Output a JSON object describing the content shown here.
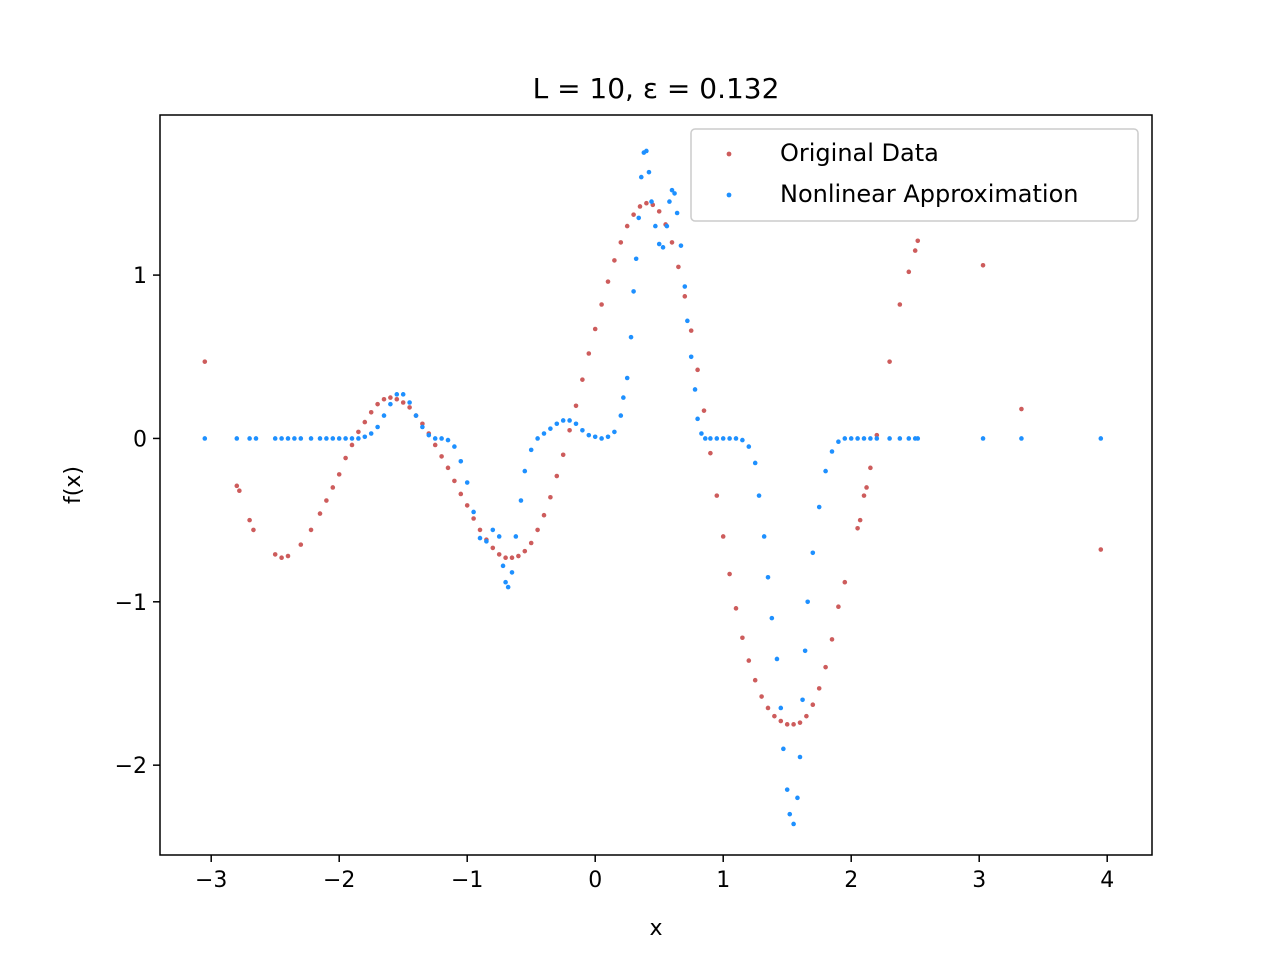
{
  "chart_data": {
    "type": "scatter",
    "title": "L = 10, ε = 0.132",
    "xlabel": "x",
    "ylabel": "f(x)",
    "xlim": [
      -3.4,
      4.35
    ],
    "ylim": [
      -2.55,
      1.98
    ],
    "xticks": [
      -3,
      -2,
      -1,
      0,
      1,
      2,
      3,
      4
    ],
    "xtick_labels": [
      "−3",
      "−2",
      "−1",
      "0",
      "1",
      "2",
      "3",
      "4"
    ],
    "yticks": [
      -2,
      -1,
      0,
      1
    ],
    "ytick_labels": [
      "−2",
      "−1",
      "0",
      "1"
    ],
    "grid": false,
    "legend_position": "top-right",
    "series": [
      {
        "name": "Original Data",
        "color": "#cd5c5c",
        "points": [
          [
            -3.05,
            0.47
          ],
          [
            -2.8,
            -0.29
          ],
          [
            -2.78,
            -0.32
          ],
          [
            -2.7,
            -0.5
          ],
          [
            -2.67,
            -0.56
          ],
          [
            -2.5,
            -0.71
          ],
          [
            -2.45,
            -0.73
          ],
          [
            -2.4,
            -0.72
          ],
          [
            -2.3,
            -0.65
          ],
          [
            -2.22,
            -0.56
          ],
          [
            -2.15,
            -0.46
          ],
          [
            -2.1,
            -0.38
          ],
          [
            -2.05,
            -0.3
          ],
          [
            -2.0,
            -0.22
          ],
          [
            -1.95,
            -0.12
          ],
          [
            -1.9,
            -0.04
          ],
          [
            -1.85,
            0.04
          ],
          [
            -1.8,
            0.1
          ],
          [
            -1.75,
            0.16
          ],
          [
            -1.7,
            0.21
          ],
          [
            -1.65,
            0.24
          ],
          [
            -1.6,
            0.25
          ],
          [
            -1.55,
            0.24
          ],
          [
            -1.5,
            0.22
          ],
          [
            -1.45,
            0.19
          ],
          [
            -1.4,
            0.14
          ],
          [
            -1.35,
            0.09
          ],
          [
            -1.3,
            0.03
          ],
          [
            -1.25,
            -0.04
          ],
          [
            -1.2,
            -0.11
          ],
          [
            -1.15,
            -0.18
          ],
          [
            -1.1,
            -0.26
          ],
          [
            -1.05,
            -0.34
          ],
          [
            -1.0,
            -0.41
          ],
          [
            -0.95,
            -0.49
          ],
          [
            -0.9,
            -0.56
          ],
          [
            -0.85,
            -0.62
          ],
          [
            -0.8,
            -0.67
          ],
          [
            -0.75,
            -0.71
          ],
          [
            -0.7,
            -0.73
          ],
          [
            -0.65,
            -0.73
          ],
          [
            -0.6,
            -0.72
          ],
          [
            -0.55,
            -0.69
          ],
          [
            -0.5,
            -0.64
          ],
          [
            -0.45,
            -0.56
          ],
          [
            -0.4,
            -0.47
          ],
          [
            -0.35,
            -0.36
          ],
          [
            -0.3,
            -0.23
          ],
          [
            -0.25,
            -0.1
          ],
          [
            -0.2,
            0.05
          ],
          [
            -0.15,
            0.2
          ],
          [
            -0.1,
            0.36
          ],
          [
            -0.05,
            0.52
          ],
          [
            0.0,
            0.67
          ],
          [
            0.05,
            0.82
          ],
          [
            0.1,
            0.96
          ],
          [
            0.15,
            1.09
          ],
          [
            0.2,
            1.2
          ],
          [
            0.25,
            1.3
          ],
          [
            0.3,
            1.37
          ],
          [
            0.35,
            1.42
          ],
          [
            0.4,
            1.44
          ],
          [
            0.45,
            1.43
          ],
          [
            0.5,
            1.39
          ],
          [
            0.55,
            1.31
          ],
          [
            0.6,
            1.2
          ],
          [
            0.65,
            1.05
          ],
          [
            0.7,
            0.87
          ],
          [
            0.75,
            0.66
          ],
          [
            0.8,
            0.42
          ],
          [
            0.85,
            0.17
          ],
          [
            0.9,
            -0.09
          ],
          [
            0.95,
            -0.35
          ],
          [
            1.0,
            -0.6
          ],
          [
            1.05,
            -0.83
          ],
          [
            1.1,
            -1.04
          ],
          [
            1.15,
            -1.22
          ],
          [
            1.2,
            -1.36
          ],
          [
            1.25,
            -1.48
          ],
          [
            1.3,
            -1.58
          ],
          [
            1.35,
            -1.65
          ],
          [
            1.4,
            -1.7
          ],
          [
            1.45,
            -1.73
          ],
          [
            1.5,
            -1.75
          ],
          [
            1.55,
            -1.75
          ],
          [
            1.6,
            -1.74
          ],
          [
            1.65,
            -1.7
          ],
          [
            1.7,
            -1.63
          ],
          [
            1.75,
            -1.53
          ],
          [
            1.8,
            -1.4
          ],
          [
            1.85,
            -1.23
          ],
          [
            1.9,
            -1.03
          ],
          [
            1.95,
            -0.88
          ],
          [
            2.05,
            -0.55
          ],
          [
            2.07,
            -0.5
          ],
          [
            2.1,
            -0.35
          ],
          [
            2.12,
            -0.3
          ],
          [
            2.15,
            -0.18
          ],
          [
            2.2,
            0.02
          ],
          [
            2.3,
            0.47
          ],
          [
            2.38,
            0.82
          ],
          [
            2.45,
            1.02
          ],
          [
            2.5,
            1.15
          ],
          [
            2.52,
            1.21
          ],
          [
            3.03,
            1.06
          ],
          [
            3.33,
            0.18
          ],
          [
            3.95,
            -0.68
          ]
        ]
      },
      {
        "name": "Nonlinear Approximation",
        "color": "#1e90ff",
        "points": [
          [
            -3.05,
            0.0
          ],
          [
            -2.8,
            0.0
          ],
          [
            -2.7,
            0.0
          ],
          [
            -2.65,
            0.0
          ],
          [
            -2.5,
            0.0
          ],
          [
            -2.45,
            0.0
          ],
          [
            -2.4,
            0.0
          ],
          [
            -2.35,
            0.0
          ],
          [
            -2.3,
            0.0
          ],
          [
            -2.22,
            0.0
          ],
          [
            -2.15,
            0.0
          ],
          [
            -2.1,
            0.0
          ],
          [
            -2.05,
            0.0
          ],
          [
            -2.0,
            0.0
          ],
          [
            -1.95,
            0.0
          ],
          [
            -1.9,
            0.0
          ],
          [
            -1.85,
            0.0
          ],
          [
            -1.8,
            0.01
          ],
          [
            -1.75,
            0.03
          ],
          [
            -1.7,
            0.07
          ],
          [
            -1.65,
            0.14
          ],
          [
            -1.6,
            0.21
          ],
          [
            -1.55,
            0.27
          ],
          [
            -1.5,
            0.27
          ],
          [
            -1.45,
            0.22
          ],
          [
            -1.4,
            0.14
          ],
          [
            -1.35,
            0.07
          ],
          [
            -1.3,
            0.02
          ],
          [
            -1.25,
            0.0
          ],
          [
            -1.2,
            0.0
          ],
          [
            -1.15,
            -0.01
          ],
          [
            -1.1,
            -0.05
          ],
          [
            -1.05,
            -0.14
          ],
          [
            -1.0,
            -0.27
          ],
          [
            -0.95,
            -0.45
          ],
          [
            -0.9,
            -0.61
          ],
          [
            -0.85,
            -0.63
          ],
          [
            -0.8,
            -0.56
          ],
          [
            -0.75,
            -0.6
          ],
          [
            -0.72,
            -0.78
          ],
          [
            -0.7,
            -0.88
          ],
          [
            -0.68,
            -0.91
          ],
          [
            -0.65,
            -0.82
          ],
          [
            -0.62,
            -0.6
          ],
          [
            -0.58,
            -0.38
          ],
          [
            -0.55,
            -0.2
          ],
          [
            -0.5,
            -0.07
          ],
          [
            -0.45,
            0.0
          ],
          [
            -0.4,
            0.03
          ],
          [
            -0.35,
            0.06
          ],
          [
            -0.3,
            0.09
          ],
          [
            -0.25,
            0.11
          ],
          [
            -0.2,
            0.11
          ],
          [
            -0.15,
            0.09
          ],
          [
            -0.1,
            0.05
          ],
          [
            -0.05,
            0.02
          ],
          [
            0.0,
            0.01
          ],
          [
            0.05,
            0.0
          ],
          [
            0.1,
            0.01
          ],
          [
            0.15,
            0.04
          ],
          [
            0.2,
            0.14
          ],
          [
            0.22,
            0.25
          ],
          [
            0.25,
            0.37
          ],
          [
            0.28,
            0.62
          ],
          [
            0.3,
            0.9
          ],
          [
            0.32,
            1.1
          ],
          [
            0.34,
            1.35
          ],
          [
            0.36,
            1.6
          ],
          [
            0.38,
            1.75
          ],
          [
            0.4,
            1.76
          ],
          [
            0.42,
            1.63
          ],
          [
            0.44,
            1.45
          ],
          [
            0.47,
            1.3
          ],
          [
            0.5,
            1.19
          ],
          [
            0.53,
            1.17
          ],
          [
            0.56,
            1.3
          ],
          [
            0.58,
            1.45
          ],
          [
            0.6,
            1.52
          ],
          [
            0.62,
            1.5
          ],
          [
            0.64,
            1.38
          ],
          [
            0.67,
            1.18
          ],
          [
            0.7,
            0.93
          ],
          [
            0.72,
            0.72
          ],
          [
            0.75,
            0.5
          ],
          [
            0.78,
            0.3
          ],
          [
            0.8,
            0.12
          ],
          [
            0.83,
            0.03
          ],
          [
            0.86,
            0.0
          ],
          [
            0.9,
            0.0
          ],
          [
            0.95,
            0.0
          ],
          [
            1.0,
            0.0
          ],
          [
            1.05,
            0.0
          ],
          [
            1.1,
            0.0
          ],
          [
            1.15,
            -0.01
          ],
          [
            1.2,
            -0.05
          ],
          [
            1.25,
            -0.15
          ],
          [
            1.28,
            -0.35
          ],
          [
            1.32,
            -0.6
          ],
          [
            1.35,
            -0.85
          ],
          [
            1.38,
            -1.1
          ],
          [
            1.42,
            -1.35
          ],
          [
            1.45,
            -1.65
          ],
          [
            1.47,
            -1.9
          ],
          [
            1.5,
            -2.15
          ],
          [
            1.52,
            -2.3
          ],
          [
            1.55,
            -2.36
          ],
          [
            1.58,
            -2.2
          ],
          [
            1.6,
            -1.95
          ],
          [
            1.62,
            -1.6
          ],
          [
            1.64,
            -1.3
          ],
          [
            1.66,
            -1.0
          ],
          [
            1.7,
            -0.7
          ],
          [
            1.75,
            -0.42
          ],
          [
            1.8,
            -0.2
          ],
          [
            1.85,
            -0.08
          ],
          [
            1.9,
            -0.02
          ],
          [
            1.95,
            0.0
          ],
          [
            2.0,
            0.0
          ],
          [
            2.05,
            0.0
          ],
          [
            2.1,
            0.0
          ],
          [
            2.15,
            0.0
          ],
          [
            2.2,
            0.0
          ],
          [
            2.3,
            0.0
          ],
          [
            2.38,
            0.0
          ],
          [
            2.45,
            0.0
          ],
          [
            2.5,
            0.0
          ],
          [
            2.52,
            0.0
          ],
          [
            3.03,
            0.0
          ],
          [
            3.33,
            0.0
          ],
          [
            3.95,
            0.0
          ]
        ]
      }
    ]
  }
}
